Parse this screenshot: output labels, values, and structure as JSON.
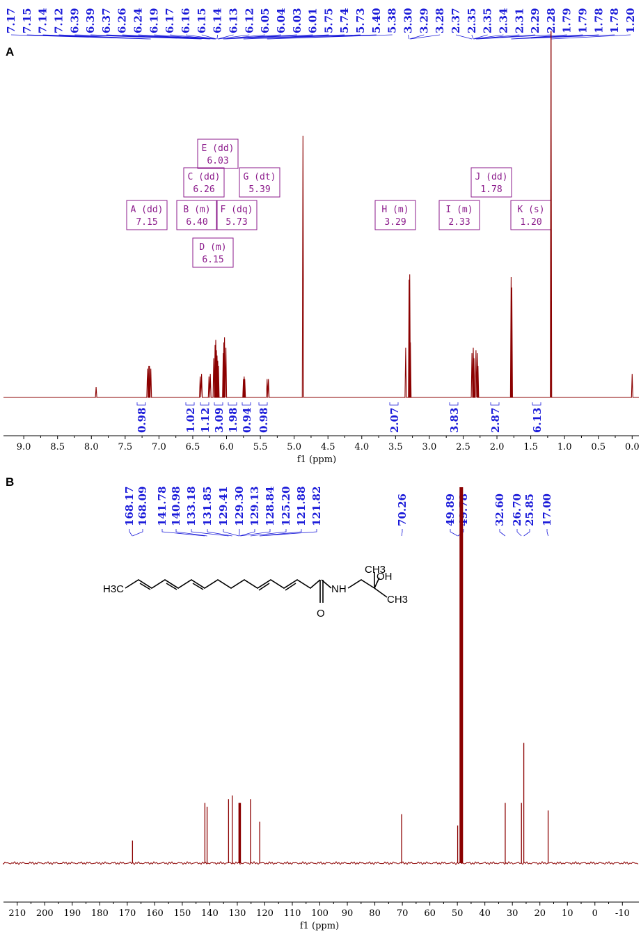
{
  "panels": {
    "a_letter": "A",
    "b_letter": "B"
  },
  "colors": {
    "spectrum": "#8b0000",
    "labels": "#1a1ad9",
    "multiplet": "#8b1a8b",
    "axis": "#000000"
  },
  "chart_data": [
    {
      "type": "line",
      "panel": "A",
      "nucleus": "1H",
      "xlabel": "f1 (ppm)",
      "x_reversed": true,
      "xlim": [
        9.3,
        -0.1
      ],
      "x_ticks": [
        "9.0",
        "8.5",
        "8.0",
        "7.5",
        "7.0",
        "6.5",
        "6.0",
        "5.5",
        "5.0",
        "4.5",
        "4.0",
        "3.5",
        "3.0",
        "2.5",
        "2.0",
        "1.5",
        "1.0",
        "0.5",
        "0.0",
        "-0."
      ],
      "x_tick_values": [
        9.0,
        8.5,
        8.0,
        7.5,
        7.0,
        6.5,
        6.0,
        5.5,
        5.0,
        4.5,
        4.0,
        3.5,
        3.0,
        2.5,
        2.0,
        1.5,
        1.0,
        0.5,
        0.0,
        -0.5
      ],
      "peak_labels": [
        "7.17",
        "7.15",
        "7.14",
        "7.12",
        "6.39",
        "6.39",
        "6.37",
        "6.26",
        "6.24",
        "6.19",
        "6.17",
        "6.16",
        "6.15",
        "6.14",
        "6.13",
        "6.12",
        "6.05",
        "6.04",
        "6.03",
        "6.01",
        "5.75",
        "5.74",
        "5.73",
        "5.40",
        "5.38",
        "3.30",
        "3.29",
        "3.28",
        "2.37",
        "2.35",
        "2.35",
        "2.34",
        "2.31",
        "2.29",
        "2.28",
        "1.79",
        "1.79",
        "1.78",
        "1.78",
        "1.20"
      ],
      "peaks": [
        {
          "ppm": 7.93,
          "height": 0.04
        },
        {
          "ppm": 7.17,
          "height": 0.11
        },
        {
          "ppm": 7.15,
          "height": 0.12
        },
        {
          "ppm": 7.14,
          "height": 0.12
        },
        {
          "ppm": 7.12,
          "height": 0.11
        },
        {
          "ppm": 6.39,
          "height": 0.08
        },
        {
          "ppm": 6.37,
          "height": 0.09
        },
        {
          "ppm": 6.26,
          "height": 0.08
        },
        {
          "ppm": 6.24,
          "height": 0.09
        },
        {
          "ppm": 6.19,
          "height": 0.15
        },
        {
          "ppm": 6.17,
          "height": 0.2
        },
        {
          "ppm": 6.16,
          "height": 0.22
        },
        {
          "ppm": 6.15,
          "height": 0.18
        },
        {
          "ppm": 6.14,
          "height": 0.16
        },
        {
          "ppm": 6.13,
          "height": 0.14
        },
        {
          "ppm": 6.12,
          "height": 0.12
        },
        {
          "ppm": 6.05,
          "height": 0.17
        },
        {
          "ppm": 6.04,
          "height": 0.21
        },
        {
          "ppm": 6.03,
          "height": 0.23
        },
        {
          "ppm": 6.01,
          "height": 0.19
        },
        {
          "ppm": 5.75,
          "height": 0.07
        },
        {
          "ppm": 5.74,
          "height": 0.08
        },
        {
          "ppm": 5.73,
          "height": 0.07
        },
        {
          "ppm": 5.4,
          "height": 0.07
        },
        {
          "ppm": 5.38,
          "height": 0.07
        },
        {
          "ppm": 4.87,
          "height": 1.0
        },
        {
          "ppm": 3.35,
          "height": 0.19
        },
        {
          "ppm": 3.3,
          "height": 0.45
        },
        {
          "ppm": 3.29,
          "height": 0.47
        },
        {
          "ppm": 3.28,
          "height": 0.21
        },
        {
          "ppm": 2.37,
          "height": 0.17
        },
        {
          "ppm": 2.35,
          "height": 0.19
        },
        {
          "ppm": 2.34,
          "height": 0.15
        },
        {
          "ppm": 2.31,
          "height": 0.18
        },
        {
          "ppm": 2.29,
          "height": 0.17
        },
        {
          "ppm": 2.28,
          "height": 0.12
        },
        {
          "ppm": 1.79,
          "height": 0.46
        },
        {
          "ppm": 1.78,
          "height": 0.42
        },
        {
          "ppm": 1.2,
          "height": 1.4
        },
        {
          "ppm": 0.0,
          "height": 0.09
        }
      ],
      "integrals": [
        {
          "center": 7.15,
          "value": "0.98"
        },
        {
          "center": 6.4,
          "value": "1.02"
        },
        {
          "center": 6.26,
          "value": "1.12"
        },
        {
          "center": 6.1,
          "value": "3.09"
        },
        {
          "center": 5.95,
          "value": "1.98"
        },
        {
          "center": 5.73,
          "value": "0.94"
        },
        {
          "center": 5.39,
          "value": "0.98"
        },
        {
          "center": 3.29,
          "value": "2.07"
        },
        {
          "center": 2.33,
          "value": "3.83"
        },
        {
          "center": 1.78,
          "value": "2.87"
        },
        {
          "center": 1.2,
          "value": "6.13"
        }
      ],
      "multiplets": [
        {
          "name": "E (dd)",
          "shift": "6.03"
        },
        {
          "name": "C (dd)",
          "shift": "6.26"
        },
        {
          "name": "G (dt)",
          "shift": "5.39"
        },
        {
          "name": "A (dd)",
          "shift": "7.15"
        },
        {
          "name": "B (m)",
          "shift": "6.40"
        },
        {
          "name": "F (dq)",
          "shift": "5.73"
        },
        {
          "name": "D (m)",
          "shift": "6.15"
        },
        {
          "name": "H (m)",
          "shift": "3.29"
        },
        {
          "name": "I (m)",
          "shift": "2.33"
        },
        {
          "name": "J (dd)",
          "shift": "1.78"
        },
        {
          "name": "K (s)",
          "shift": "1.20"
        }
      ]
    },
    {
      "type": "line",
      "panel": "B",
      "nucleus": "13C",
      "xlabel": "f1 (ppm)",
      "x_reversed": true,
      "xlim": [
        215,
        -16
      ],
      "x_ticks": [
        "210",
        "200",
        "190",
        "180",
        "170",
        "160",
        "150",
        "140",
        "130",
        "120",
        "110",
        "100",
        "90",
        "80",
        "70",
        "60",
        "50",
        "40",
        "30",
        "20",
        "10",
        "0",
        "-10"
      ],
      "x_tick_values": [
        210,
        200,
        190,
        180,
        170,
        160,
        150,
        140,
        130,
        120,
        110,
        100,
        90,
        80,
        70,
        60,
        50,
        40,
        30,
        20,
        10,
        0,
        -10
      ],
      "peak_labels": [
        "168.17",
        "168.09",
        "141.78",
        "140.98",
        "133.18",
        "131.85",
        "129.41",
        "129.30",
        "129.13",
        "128.84",
        "125.20",
        "121.88",
        "121.82",
        "70.26",
        "49.89",
        "49.78",
        "32.60",
        "26.70",
        "25.85",
        "17.00"
      ],
      "peaks": [
        {
          "ppm": 168.1,
          "height": 0.06
        },
        {
          "ppm": 141.78,
          "height": 0.16
        },
        {
          "ppm": 140.98,
          "height": 0.15
        },
        {
          "ppm": 133.18,
          "height": 0.17
        },
        {
          "ppm": 131.85,
          "height": 0.18
        },
        {
          "ppm": 129.41,
          "height": 0.16
        },
        {
          "ppm": 129.3,
          "height": 0.16
        },
        {
          "ppm": 129.13,
          "height": 0.16
        },
        {
          "ppm": 128.84,
          "height": 0.16
        },
        {
          "ppm": 125.2,
          "height": 0.17
        },
        {
          "ppm": 121.85,
          "height": 0.11
        },
        {
          "ppm": 70.26,
          "height": 0.13
        },
        {
          "ppm": 49.89,
          "height": 0.1
        },
        {
          "ppm": 49.0,
          "height": 1.0
        },
        {
          "ppm": 48.85,
          "height": 0.97
        },
        {
          "ppm": 48.7,
          "height": 0.99
        },
        {
          "ppm": 32.6,
          "height": 0.16
        },
        {
          "ppm": 26.7,
          "height": 0.16
        },
        {
          "ppm": 25.85,
          "height": 0.32
        },
        {
          "ppm": 17.0,
          "height": 0.14
        }
      ]
    }
  ],
  "structure": {
    "left_group": "H3C",
    "amide_nh": "NH",
    "carbonyl_o": "O",
    "methyl_top": "CH3",
    "methyl_right": "CH3",
    "hydroxyl": "OH"
  }
}
